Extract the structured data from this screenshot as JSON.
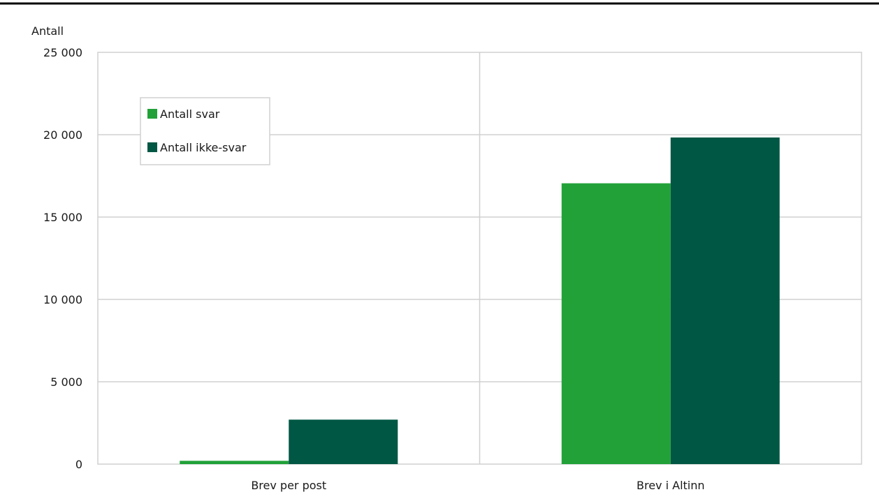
{
  "chart_data": {
    "type": "bar",
    "categories": [
      "Brev per post",
      "Brev i Altinn"
    ],
    "series": [
      {
        "name": "Antall svar",
        "values": [
          200,
          17050
        ],
        "color": "#22a139"
      },
      {
        "name": "Antall ikke-svar",
        "values": [
          2700,
          19830
        ],
        "color": "#005744"
      }
    ],
    "ylabel": "Antall",
    "ylim": [
      0,
      25000
    ],
    "yticks": [
      0,
      5000,
      10000,
      15000,
      20000,
      25000
    ],
    "ytick_labels": [
      "0",
      "5 000",
      "10 000",
      "15 000",
      "20 000",
      "25 000"
    ],
    "grid": true,
    "legend_position": "top-left"
  }
}
